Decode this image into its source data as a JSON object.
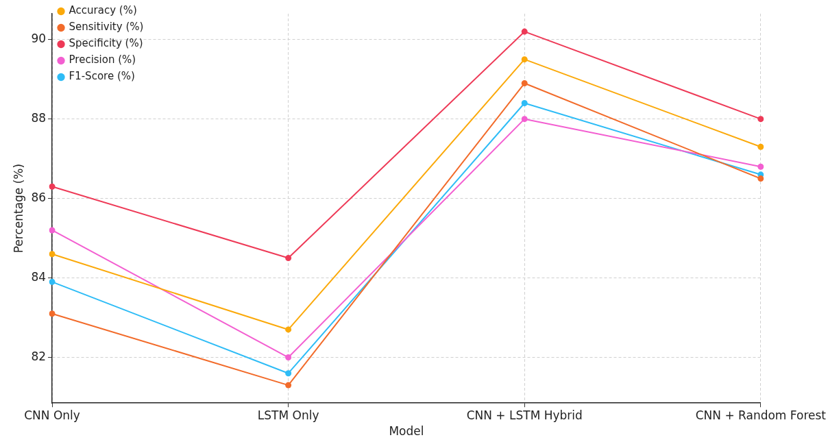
{
  "chart_data": {
    "type": "line",
    "xlabel": "Model",
    "ylabel": "Percentage (%)",
    "categories": [
      "CNN Only",
      "LSTM Only",
      "CNN + LSTM Hybrid",
      "CNN + Random Forest"
    ],
    "ylim": [
      80.85,
      90.65
    ],
    "yticks": [
      82,
      84,
      86,
      88,
      90
    ],
    "grid": true,
    "legend": "top left",
    "marker": "circle",
    "line_style": "solid",
    "series": [
      {
        "name": "Accuracy (%)",
        "color": "#fba90a",
        "values": [
          84.6,
          82.7,
          89.5,
          87.3
        ]
      },
      {
        "name": "Sensitivity (%)",
        "color": "#f26b2a",
        "values": [
          83.1,
          81.3,
          88.9,
          86.5
        ]
      },
      {
        "name": "Specificity (%)",
        "color": "#ee3a57",
        "values": [
          86.3,
          84.5,
          90.2,
          88.0
        ]
      },
      {
        "name": "Precision (%)",
        "color": "#f35fd1",
        "values": [
          85.2,
          82.0,
          88.0,
          86.8
        ]
      },
      {
        "name": "F1-Score (%)",
        "color": "#2ebcf6",
        "values": [
          83.9,
          81.6,
          88.4,
          86.6
        ]
      }
    ]
  }
}
